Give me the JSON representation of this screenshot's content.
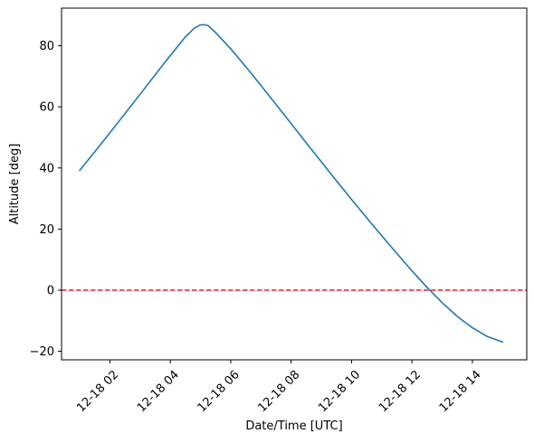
{
  "chart_data": {
    "type": "line",
    "title": "",
    "xlabel": "Date/Time [UTC]",
    "ylabel": "Altitude [deg]",
    "x_unit": "hour of 12-18 (UTC)",
    "xlim": [
      0.4,
      15.8
    ],
    "ylim": [
      -22.8,
      92.3
    ],
    "x_ticks": [
      2,
      4,
      6,
      8,
      10,
      12,
      14
    ],
    "x_tick_labels": [
      "12-18 02",
      "12-18 04",
      "12-18 06",
      "12-18 08",
      "12-18 10",
      "12-18 12",
      "12-18 14"
    ],
    "y_ticks": [
      -20,
      0,
      20,
      40,
      60,
      80
    ],
    "y_tick_labels": [
      "−20",
      "0",
      "20",
      "40",
      "60",
      "80"
    ],
    "grid": false,
    "series": [
      {
        "color": "#1f77b4",
        "x": [
          1.0,
          1.5,
          2.0,
          2.5,
          3.0,
          3.5,
          4.0,
          4.5,
          4.8,
          5.0,
          5.1,
          5.25,
          5.5,
          6.0,
          6.5,
          7.0,
          7.5,
          8.0,
          8.5,
          9.0,
          9.5,
          10.0,
          10.5,
          11.0,
          11.5,
          12.0,
          12.5,
          12.75,
          13.0,
          13.5,
          14.0,
          14.5,
          15.0
        ],
        "y": [
          39.2,
          45.3,
          51.5,
          57.8,
          64.1,
          70.5,
          76.8,
          82.9,
          85.8,
          86.8,
          86.9,
          86.6,
          84.3,
          79.0,
          73.1,
          67.0,
          60.8,
          54.5,
          48.2,
          42.0,
          35.8,
          29.7,
          23.7,
          17.8,
          12.0,
          6.3,
          0.9,
          -1.6,
          -4.1,
          -8.6,
          -12.3,
          -15.2,
          -17.0
        ]
      }
    ],
    "reference_lines": [
      {
        "orientation": "horizontal",
        "y": 0,
        "color": "#d62728",
        "style": "dashed"
      }
    ]
  }
}
